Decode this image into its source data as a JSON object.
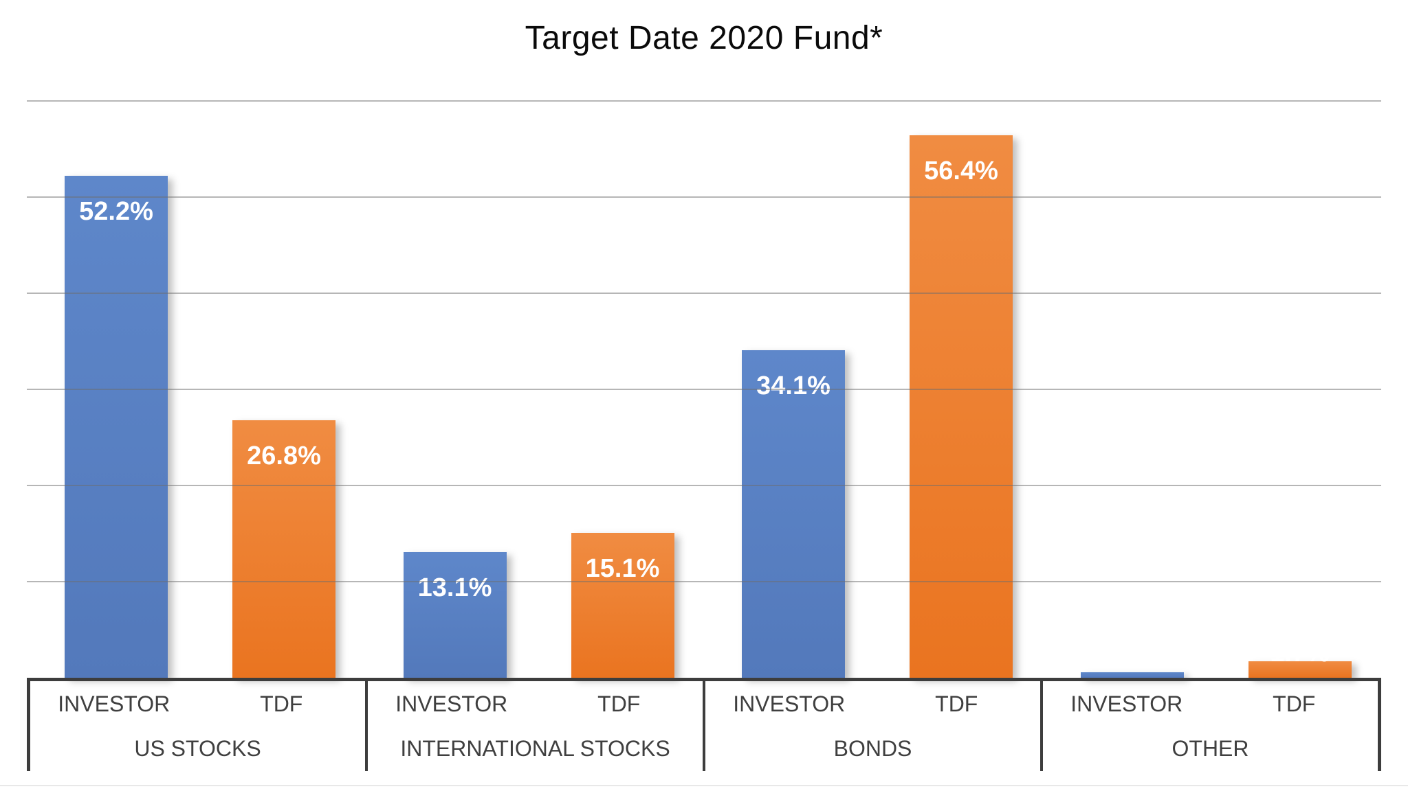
{
  "chart_data": {
    "type": "bar",
    "title": "Target Date 2020 Fund*",
    "categories": [
      "US STOCKS",
      "INTERNATIONAL STOCKS",
      "BONDS",
      "OTHER"
    ],
    "series": [
      {
        "name": "INVESTOR",
        "values": [
          52.2,
          13.1,
          34.1,
          0.6
        ],
        "labels": [
          "52.2%",
          "13.1%",
          "34.1%",
          "0.6%"
        ],
        "color_top": "#5e87ca",
        "color_bottom": "#5379bb"
      },
      {
        "name": "TDF",
        "values": [
          26.8,
          15.1,
          56.4,
          1.7
        ],
        "labels": [
          "26.8%",
          "15.1%",
          "56.4%",
          "1.7%"
        ],
        "color_top": "#f08c42",
        "color_bottom": "#ea7420"
      }
    ],
    "xlabel": "",
    "ylabel": "",
    "ylim": [
      0,
      60
    ],
    "gridline_step": 10,
    "grid": true,
    "legend_position": "none",
    "y_axis_tick_labels_visible": false,
    "value_labels_position": "inside-top"
  },
  "colors": {
    "gridline": "rgba(110,110,110,0.5)",
    "axis_line": "#3d3d3d",
    "category_text": "#3f3f3f",
    "title_text": "#0a0a0a",
    "value_label": "#ffffff",
    "bottom_edge": "#e8e8e8",
    "background": "#ffffff"
  }
}
